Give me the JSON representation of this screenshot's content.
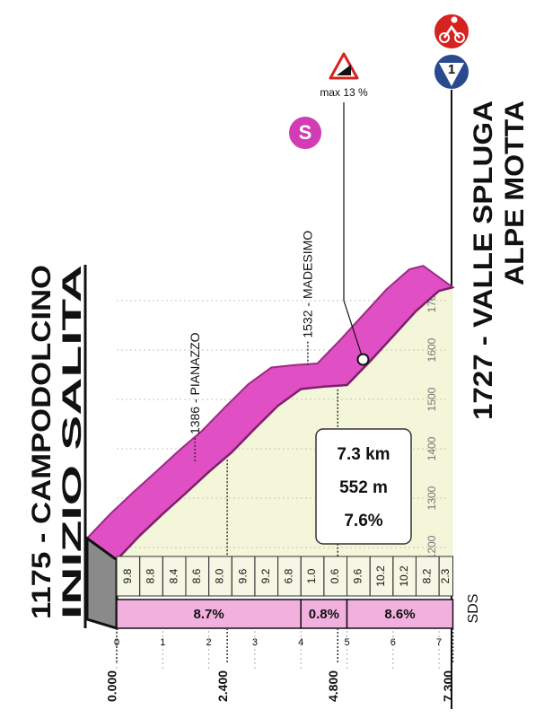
{
  "climb": {
    "start": {
      "name": "1175 - CAMPODOLCINO",
      "note": "INIZIO SALITA"
    },
    "finish": {
      "name": "1727 - VALLE SPLUGA",
      "note": "ALPE MOTTA"
    },
    "sprint_icon": "S",
    "finish_icon": "1",
    "waypoints": [
      {
        "label": "1386 - PIANAZZO",
        "km": 1.7
      },
      {
        "label": "1532 - MADESIMO",
        "km": 4.15
      }
    ],
    "max_gradient": {
      "label": "max 13 %",
      "km": 5.35
    },
    "summary": {
      "length": {
        "value": 7.3,
        "label": "7.3 km"
      },
      "gain": {
        "value": 552,
        "label": "552 m"
      },
      "average": {
        "value": 7.6,
        "label": "7.6%"
      }
    },
    "gradients": {
      "values": [
        9.8,
        8.8,
        8.4,
        8.6,
        8.0,
        9.6,
        9.2,
        6.8,
        1.0,
        0.6,
        9.6,
        10.2,
        10.2,
        8.2,
        2.3
      ],
      "value_labels": [
        "9.8",
        "8.8",
        "8.4",
        "8.6",
        "8.0",
        "9.6",
        "9.2",
        "6.8",
        "1.0",
        "0.6",
        "9.6",
        "10.2",
        "10.2",
        "8.2",
        "2.3"
      ]
    },
    "segments": [
      {
        "from": 0,
        "to": 4,
        "value": 8.7,
        "label": "8.7%"
      },
      {
        "from": 4,
        "to": 5,
        "value": 0.8,
        "label": "0.8%"
      },
      {
        "from": 5,
        "to": 7.3,
        "value": 8.6,
        "label": "8.6%"
      }
    ],
    "sds": "SDS",
    "distance_marks": [
      {
        "value": 0,
        "label": "0.000"
      },
      {
        "value": 2.4,
        "label": "2.400"
      },
      {
        "value": 4.8,
        "label": "4.800"
      },
      {
        "value": 7.3,
        "label": "7.300"
      }
    ]
  },
  "chart_data": {
    "type": "area",
    "x": [
      0,
      0.5,
      1,
      1.5,
      2,
      2.5,
      3,
      3.5,
      4,
      4.5,
      5,
      5.5,
      6,
      6.5,
      7,
      7.3
    ],
    "y": [
      1175,
      1224,
      1268,
      1310,
      1353,
      1393,
      1441,
      1487,
      1521,
      1526,
      1529,
      1577,
      1628,
      1679,
      1720,
      1727
    ],
    "xlim": [
      0,
      7.3
    ],
    "ylim": [
      1150,
      1750
    ],
    "xticks": [
      0,
      1,
      2,
      3,
      4,
      5,
      6,
      7
    ],
    "yticks": [
      1200,
      1300,
      1400,
      1500,
      1600,
      1700
    ],
    "color": "#e050c4",
    "grid": true
  }
}
